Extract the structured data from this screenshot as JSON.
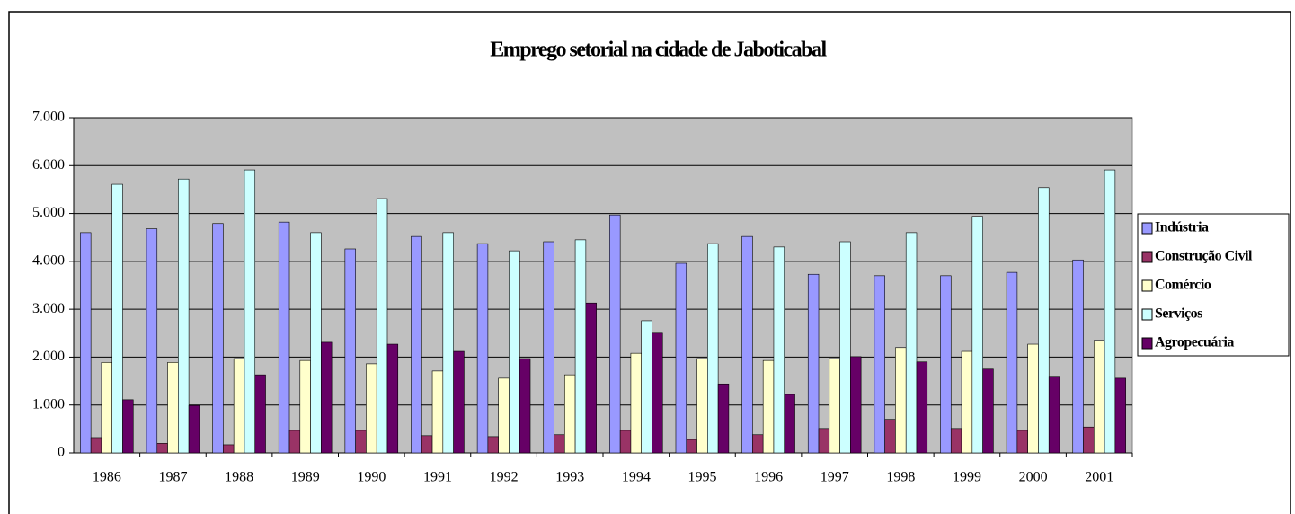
{
  "chart_data": {
    "type": "bar",
    "title": "Emprego setorial na cidade de Jaboticabal",
    "categories": [
      "1986",
      "1987",
      "1988",
      "1989",
      "1990",
      "1991",
      "1992",
      "1993",
      "1994",
      "1995",
      "1996",
      "1997",
      "1998",
      "1999",
      "2000",
      "2001"
    ],
    "series": [
      {
        "name": "Indústria",
        "color": "#9999ff",
        "values": [
          4600,
          4680,
          4790,
          4820,
          4260,
          4520,
          4370,
          4410,
          4970,
          3960,
          4520,
          3730,
          3700,
          3700,
          3770,
          4030
        ]
      },
      {
        "name": "Construção Civil",
        "color": "#993366",
        "values": [
          320,
          200,
          170,
          470,
          470,
          360,
          340,
          380,
          470,
          280,
          380,
          510,
          700,
          510,
          470,
          540
        ]
      },
      {
        "name": "Comércio",
        "color": "#ffffcc",
        "values": [
          1890,
          1890,
          1970,
          1930,
          1860,
          1710,
          1560,
          1630,
          2080,
          1970,
          1930,
          1970,
          2200,
          2120,
          2270,
          2350
        ]
      },
      {
        "name": "Serviços",
        "color": "#ccffff",
        "values": [
          5610,
          5720,
          5910,
          4600,
          5310,
          4600,
          4220,
          4450,
          2760,
          4370,
          4300,
          4410,
          4600,
          4940,
          5540,
          5910
        ]
      },
      {
        "name": "Agropecuária",
        "color": "#660066",
        "values": [
          1110,
          990,
          1630,
          2310,
          2270,
          2120,
          1970,
          3130,
          2500,
          1440,
          1220,
          2010,
          1900,
          1750,
          1600,
          1560
        ]
      }
    ],
    "ylim": [
      0,
      7000
    ],
    "yticks": [
      0,
      {
        "value": 1000,
        "label": "1.000"
      },
      {
        "value": 2000,
        "label": "2.000"
      },
      {
        "value": 3000,
        "label": "3.000"
      },
      {
        "value": 4000,
        "label": "4.000"
      },
      {
        "value": 5000,
        "label": "5.000"
      },
      {
        "value": 6000,
        "label": "6.000"
      },
      {
        "value": 7000,
        "label": "7.000"
      }
    ],
    "grid": true,
    "legend": "right",
    "plot_background": "#c0c0c0"
  }
}
